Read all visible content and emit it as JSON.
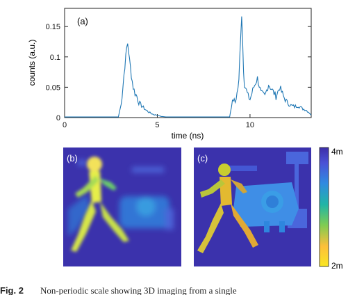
{
  "chart_data": [
    {
      "type": "line",
      "panel_label": "(a)",
      "xlabel": "time (ns)",
      "ylabel": "counts (a.u.)",
      "xlim": [
        0,
        13.3
      ],
      "ylim": [
        0,
        0.18
      ],
      "xticks": [
        "0",
        "5",
        "10"
      ],
      "yticks": [
        "0",
        "0.05",
        "0.1",
        "0.15"
      ],
      "grid": false,
      "color": "#1f77b4",
      "series": [
        {
          "x": [
            0,
            2.9,
            3.0,
            3.1,
            3.2,
            3.3,
            3.35,
            3.4,
            3.45,
            3.5,
            3.6,
            3.7,
            3.8,
            3.9,
            4.0,
            4.2,
            4.4,
            4.6,
            4.8,
            5.0,
            5.2,
            5.5,
            8.9,
            9.0,
            9.1,
            9.2,
            9.3,
            9.4,
            9.45,
            9.5,
            9.55,
            9.6,
            9.65,
            9.7,
            9.8,
            9.9,
            10.0,
            10.1,
            10.2,
            10.4,
            10.6,
            10.8,
            11.0,
            11.2,
            11.4,
            11.6,
            11.8,
            12.0,
            12.2,
            12.4,
            12.6,
            12.8,
            13.0,
            13.2,
            13.3
          ],
          "y": [
            0.001,
            0.001,
            0.015,
            0.035,
            0.07,
            0.1,
            0.115,
            0.123,
            0.11,
            0.095,
            0.07,
            0.05,
            0.04,
            0.035,
            0.025,
            0.018,
            0.012,
            0.008,
            0.005,
            0.004,
            0.002,
            0.001,
            0.001,
            0.02,
            0.03,
            0.025,
            0.04,
            0.06,
            0.1,
            0.14,
            0.17,
            0.13,
            0.08,
            0.055,
            0.045,
            0.035,
            0.03,
            0.04,
            0.05,
            0.065,
            0.04,
            0.035,
            0.055,
            0.045,
            0.035,
            0.05,
            0.035,
            0.025,
            0.02,
            0.018,
            0.02,
            0.015,
            0.013,
            0.008,
            0.004
          ]
        }
      ]
    },
    {
      "type": "heatmap",
      "panel_label": "(b)",
      "scene": "running-figure-and-car"
    },
    {
      "type": "heatmap",
      "panel_label": "(c)",
      "scene": "running-figure-and-car",
      "colorbar": {
        "max_label": "4m",
        "min_label": "2m",
        "colors": [
          "#f9e722",
          "#fdbf3a",
          "#7dcc53",
          "#21b5a6",
          "#2f8ae0",
          "#4a52d6",
          "#3d2ea8"
        ]
      }
    }
  ],
  "caption": {
    "lead": "Fig. 2",
    "text": "Non-periodic scale showing 3D imaging from a single"
  }
}
